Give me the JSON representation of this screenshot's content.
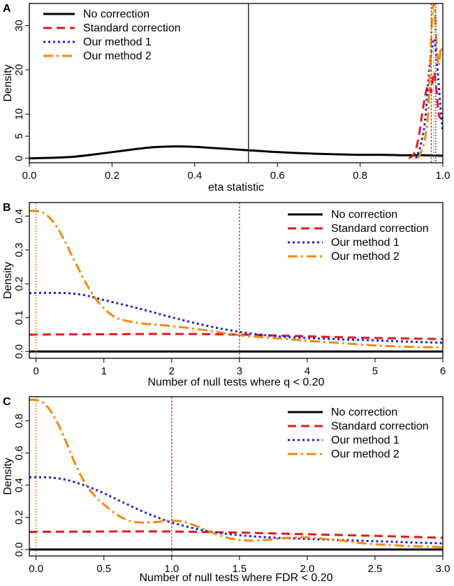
{
  "series_styles": [
    {
      "name": "No correction",
      "color": "#000000",
      "dash": "",
      "width": 3
    },
    {
      "name": "Standard correction",
      "color": "#e41a1c",
      "dash": "12,7",
      "width": 3
    },
    {
      "name": "Our method 1",
      "color": "#1f1fd6",
      "dash": "3,4",
      "width": 3
    },
    {
      "name": "Our method 2",
      "color": "#f08a0c",
      "dash": "14,5,3,5",
      "width": 3
    }
  ],
  "chart_data": [
    {
      "panel": "A",
      "type": "line",
      "title": "",
      "xlabel": "eta statistic",
      "ylabel": "Density",
      "xlim": [
        0,
        1
      ],
      "ylim": [
        -1,
        35
      ],
      "xticks": [
        0.0,
        0.2,
        0.4,
        0.6,
        0.8,
        1.0
      ],
      "xtick_labels": [
        "0.0",
        "0.2",
        "0.4",
        "0.6",
        "0.8",
        "1.0"
      ],
      "yticks": [
        0,
        5,
        10,
        20,
        30
      ],
      "ytick_labels": [
        "0",
        "5",
        "10",
        "20",
        "30"
      ],
      "legend": [
        "No correction",
        "Standard correction",
        "Our method 1",
        "Our method 2"
      ],
      "legend_position": "top-left",
      "vlines": [
        {
          "x": 0.53,
          "color": "#000000",
          "dash": ""
        },
        {
          "x": 0.972,
          "color": "#e41a1c",
          "dash": "3,2"
        },
        {
          "x": 0.983,
          "color": "#1f1fd6",
          "dash": "2,2"
        },
        {
          "x": 0.978,
          "color": "#f08a0c",
          "dash": "2,2"
        }
      ],
      "series": [
        {
          "name": "No correction",
          "x": [
            0,
            0.05,
            0.1,
            0.15,
            0.2,
            0.25,
            0.3,
            0.35,
            0.4,
            0.45,
            0.5,
            0.55,
            0.6,
            0.65,
            0.7,
            0.75,
            0.8,
            0.85,
            0.9,
            0.95,
            1.0
          ],
          "y": [
            0.0,
            0.1,
            0.3,
            0.8,
            1.4,
            2.0,
            2.5,
            2.7,
            2.6,
            2.3,
            2.0,
            1.7,
            1.4,
            1.2,
            1.0,
            0.9,
            0.8,
            0.8,
            0.7,
            0.7,
            0.6
          ]
        },
        {
          "name": "Standard correction",
          "x": [
            0.918,
            0.93,
            0.94,
            0.95,
            0.958,
            0.965,
            0.972,
            0.978,
            0.984,
            0.99,
            0.996,
            1.0
          ],
          "y": [
            0,
            1.0,
            4.0,
            10.0,
            14.5,
            16.5,
            15.0,
            19.5,
            16.0,
            10.0,
            9.0,
            8.0
          ]
        },
        {
          "name": "Our method 1",
          "x": [
            0.935,
            0.945,
            0.955,
            0.962,
            0.968,
            0.974,
            0.979,
            0.984,
            0.989,
            0.994,
            1.0
          ],
          "y": [
            0,
            2.5,
            7.0,
            14.0,
            21.0,
            25.0,
            27.0,
            23.5,
            18.0,
            12.0,
            6.0
          ]
        },
        {
          "name": "Our method 2",
          "x": [
            0.94,
            0.95,
            0.958,
            0.964,
            0.969,
            0.973,
            0.977,
            0.981,
            0.985,
            0.99,
            0.995,
            1.0
          ],
          "y": [
            0,
            2.0,
            5.0,
            10.0,
            20.0,
            30.0,
            35.0,
            33.0,
            26.0,
            21.0,
            25.0,
            24.0
          ]
        }
      ]
    },
    {
      "panel": "B",
      "type": "line",
      "title": "",
      "xlabel": "Number of null tests where q < 0.20",
      "ylabel": "Density",
      "xlim": [
        -0.1,
        6
      ],
      "ylim": [
        -0.02,
        0.44
      ],
      "xticks": [
        0,
        1,
        2,
        3,
        4,
        5,
        6
      ],
      "xtick_labels": [
        "0",
        "1",
        "2",
        "3",
        "4",
        "5",
        "6"
      ],
      "yticks": [
        0.0,
        0.1,
        0.2,
        0.3,
        0.4
      ],
      "ytick_labels": [
        "0.0",
        "0.1",
        "0.2",
        "0.3",
        "0.4"
      ],
      "legend": [
        "No correction",
        "Standard correction",
        "Our method 1",
        "Our method 2"
      ],
      "legend_position": "top-right",
      "vlines": [
        {
          "x": 0.0,
          "color": "#c47a10",
          "dash": "2,2"
        },
        {
          "x": 3.0,
          "color": "#e41a1c",
          "dash": "3,2"
        }
      ],
      "series": [
        {
          "name": "No correction",
          "x": [
            -0.1,
            6
          ],
          "y": [
            0.0,
            0.0
          ]
        },
        {
          "name": "Standard correction",
          "x": [
            -0.1,
            1,
            2,
            3,
            4,
            5,
            6
          ],
          "y": [
            0.05,
            0.051,
            0.052,
            0.05,
            0.045,
            0.04,
            0.037
          ]
        },
        {
          "name": "Our method 1",
          "x": [
            -0.1,
            0,
            0.25,
            0.5,
            0.75,
            1,
            1.5,
            2,
            2.5,
            3,
            3.5,
            4,
            4.5,
            5,
            5.5,
            6
          ],
          "y": [
            0.172,
            0.173,
            0.173,
            0.172,
            0.165,
            0.152,
            0.128,
            0.101,
            0.077,
            0.058,
            0.046,
            0.04,
            0.036,
            0.033,
            0.029,
            0.026
          ]
        },
        {
          "name": "Our method 2",
          "x": [
            -0.1,
            0,
            0.1,
            0.2,
            0.3,
            0.4,
            0.5,
            0.6,
            0.7,
            0.8,
            0.9,
            1.0,
            1.1,
            1.2,
            1.4,
            1.6,
            2.0,
            2.5,
            3.0,
            3.5,
            4.0,
            4.5,
            5.0,
            5.5,
            6.0
          ],
          "y": [
            0.415,
            0.415,
            0.41,
            0.395,
            0.37,
            0.335,
            0.295,
            0.255,
            0.215,
            0.18,
            0.15,
            0.128,
            0.11,
            0.098,
            0.088,
            0.082,
            0.075,
            0.063,
            0.048,
            0.04,
            0.032,
            0.025,
            0.018,
            0.014,
            0.012
          ]
        }
      ]
    },
    {
      "panel": "C",
      "type": "line",
      "title": "",
      "xlabel": "Number of null tests where FDR < 0.20",
      "ylabel": "Density",
      "xlim": [
        -0.05,
        3
      ],
      "ylim": [
        -0.04,
        0.95
      ],
      "xticks": [
        0.0,
        0.5,
        1.0,
        1.5,
        2.0,
        2.5,
        3.0
      ],
      "xtick_labels": [
        "0.0",
        "0.5",
        "1.0",
        "1.5",
        "2.0",
        "2.5",
        "3.0"
      ],
      "yticks": [
        0.0,
        0.2,
        0.4,
        0.6,
        0.8
      ],
      "ytick_labels": [
        "0.0",
        "0.2",
        "0.4",
        "0.6",
        "0.8"
      ],
      "legend": [
        "No correction",
        "Standard correction",
        "Our method 1",
        "Our method 2"
      ],
      "legend_position": "top-right",
      "vlines": [
        {
          "x": 0.0,
          "color": "#c47a10",
          "dash": "2,2"
        },
        {
          "x": 1.0,
          "color": "#e41a1c",
          "dash": "3,2"
        }
      ],
      "series": [
        {
          "name": "No correction",
          "x": [
            -0.05,
            3
          ],
          "y": [
            0.0,
            0.0
          ]
        },
        {
          "name": "Standard correction",
          "x": [
            -0.05,
            0.5,
            1.0,
            1.5,
            2.0,
            2.5,
            3.0
          ],
          "y": [
            0.11,
            0.112,
            0.112,
            0.105,
            0.095,
            0.085,
            0.073
          ]
        },
        {
          "name": "Our method 1",
          "x": [
            -0.05,
            0,
            0.1,
            0.2,
            0.3,
            0.4,
            0.5,
            0.6,
            0.7,
            0.8,
            0.9,
            1.0,
            1.2,
            1.4,
            1.6,
            1.8,
            2.0,
            2.2,
            2.5,
            2.8,
            3.0
          ],
          "y": [
            0.45,
            0.45,
            0.448,
            0.437,
            0.415,
            0.385,
            0.35,
            0.31,
            0.27,
            0.232,
            0.198,
            0.168,
            0.125,
            0.098,
            0.082,
            0.072,
            0.066,
            0.06,
            0.052,
            0.043,
            0.038
          ]
        },
        {
          "name": "Our method 2",
          "x": [
            -0.05,
            0,
            0.05,
            0.1,
            0.15,
            0.2,
            0.25,
            0.3,
            0.35,
            0.4,
            0.45,
            0.5,
            0.6,
            0.7,
            0.8,
            0.9,
            1.0,
            1.1,
            1.2,
            1.3,
            1.4,
            1.5,
            1.6,
            1.7,
            1.8,
            1.9,
            2.0,
            2.2,
            2.4,
            2.6,
            2.8,
            3.0
          ],
          "y": [
            0.93,
            0.93,
            0.915,
            0.87,
            0.8,
            0.71,
            0.61,
            0.51,
            0.43,
            0.365,
            0.32,
            0.28,
            0.215,
            0.175,
            0.168,
            0.172,
            0.18,
            0.17,
            0.14,
            0.105,
            0.075,
            0.06,
            0.055,
            0.06,
            0.068,
            0.074,
            0.075,
            0.06,
            0.04,
            0.028,
            0.02,
            0.015
          ]
        }
      ]
    }
  ]
}
